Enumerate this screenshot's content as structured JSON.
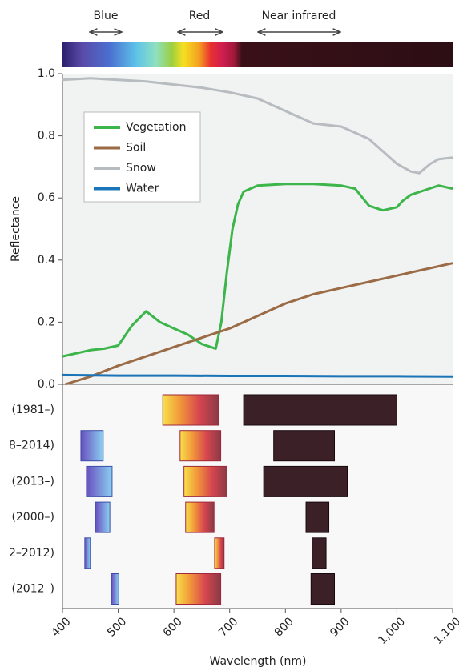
{
  "chart_data": [
    {
      "type": "line",
      "ylabel": "Reflectance",
      "xlim": [
        400,
        1100
      ],
      "ylim": [
        0,
        1
      ],
      "yticks": [
        {
          "value": 0,
          "label": "0.0"
        },
        0.2,
        0.4,
        0.6,
        0.8,
        {
          "value": 1,
          "label": "1.0"
        }
      ],
      "legend": "upper left",
      "series": [
        {
          "name": "Vegetation",
          "color": "#3cb54a",
          "x": [
            400,
            425,
            450,
            475,
            500,
            525,
            550,
            575,
            600,
            625,
            650,
            675,
            685,
            695,
            705,
            715,
            725,
            750,
            800,
            850,
            900,
            925,
            950,
            975,
            1000,
            1010,
            1025,
            1050,
            1075,
            1100
          ],
          "values": [
            0.09,
            0.1,
            0.11,
            0.115,
            0.125,
            0.19,
            0.235,
            0.2,
            0.18,
            0.16,
            0.13,
            0.115,
            0.2,
            0.36,
            0.5,
            0.58,
            0.62,
            0.64,
            0.645,
            0.645,
            0.64,
            0.63,
            0.575,
            0.56,
            0.57,
            0.59,
            0.61,
            0.625,
            0.64,
            0.63
          ]
        },
        {
          "name": "Soil",
          "color": "#9b6b45",
          "x": [
            405,
            450,
            500,
            550,
            600,
            650,
            700,
            750,
            800,
            850,
            900,
            950,
            1000,
            1050,
            1100
          ],
          "values": [
            0.0,
            0.025,
            0.06,
            0.09,
            0.12,
            0.15,
            0.18,
            0.22,
            0.26,
            0.29,
            0.31,
            0.33,
            0.35,
            0.37,
            0.39
          ]
        },
        {
          "name": "Snow",
          "color": "#b7bcc0",
          "x": [
            400,
            450,
            500,
            550,
            600,
            650,
            700,
            750,
            800,
            850,
            900,
            950,
            1000,
            1025,
            1040,
            1060,
            1075,
            1100
          ],
          "values": [
            0.98,
            0.985,
            0.98,
            0.975,
            0.965,
            0.955,
            0.94,
            0.92,
            0.88,
            0.84,
            0.83,
            0.79,
            0.71,
            0.685,
            0.68,
            0.71,
            0.725,
            0.73
          ]
        },
        {
          "name": "Water",
          "color": "#1a75b8",
          "x": [
            400,
            500,
            600,
            700,
            800,
            900,
            1000,
            1100
          ],
          "values": [
            0.03,
            0.028,
            0.028,
            0.027,
            0.027,
            0.026,
            0.026,
            0.025
          ]
        }
      ]
    },
    {
      "type": "range",
      "xlabel": "Wavelength (nm)",
      "xlim": [
        400,
        1100
      ],
      "xticks": [
        400,
        500,
        600,
        700,
        800,
        900,
        {
          "value": 1000,
          "label": "1,000"
        },
        {
          "value": 1100,
          "label": "1,100"
        }
      ],
      "categories": [
        "(1981–)",
        "8–2014)",
        "(2013–)",
        "(2000–)",
        "2–2012)",
        "(2012–)"
      ],
      "series": [
        {
          "name": "Blue",
          "color": "#3d4fa8",
          "values": [
            null,
            [
              433,
              473
            ],
            [
              443,
              489
            ],
            [
              459,
              485
            ],
            [
              440,
              450
            ],
            [
              488,
              501
            ]
          ]
        },
        {
          "name": "Red",
          "color": "#a0283a",
          "values": [
            [
              580,
              680
            ],
            [
              611,
              684
            ],
            [
              618,
              695
            ],
            [
              621,
              672
            ],
            [
              673,
              690
            ],
            [
              604,
              684
            ]
          ]
        },
        {
          "name": "Near infrared",
          "color": "#1a0a10",
          "values": [
            [
              725,
              1000
            ],
            [
              779,
              888
            ],
            [
              761,
              911
            ],
            [
              837,
              878
            ],
            [
              848,
              873
            ],
            [
              846,
              888
            ]
          ]
        }
      ]
    }
  ]
}
